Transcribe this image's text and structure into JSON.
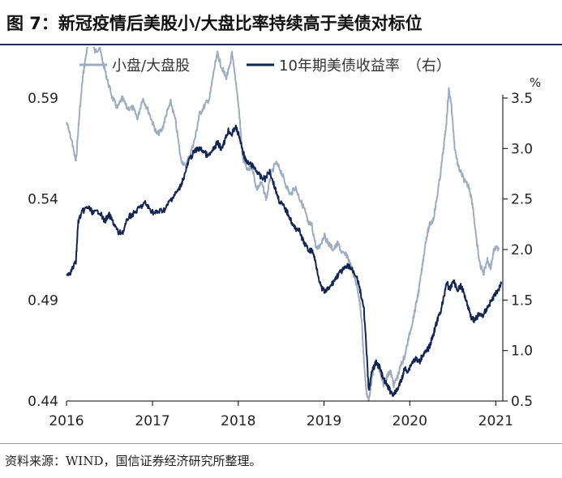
{
  "title": "图 7：新冠疫情后美股小/大盘比率持续高于美债对标位",
  "source": "资料来源：WIND，国信证券经济研究所整理。",
  "colors": {
    "small_large": "#9eacbf",
    "treasury": "#14254f",
    "axis": "#000000"
  },
  "chart_data": {
    "type": "line",
    "xlabel": "",
    "x_ticks": [
      "2016",
      "2017",
      "2018",
      "2019",
      "2020",
      "2021"
    ],
    "xlim": [
      "2016-01-01",
      "2021-01-31"
    ],
    "y_left": {
      "ticks": [
        "0.44",
        "0.49",
        "0.54",
        "0.59"
      ],
      "lim": [
        0.44,
        0.59
      ]
    },
    "y_right": {
      "unit": "%",
      "ticks": [
        "0.5",
        "1.0",
        "1.5",
        "2.0",
        "2.5",
        "3.0",
        "3.5"
      ],
      "lim": [
        0.5,
        3.5
      ]
    },
    "legend_position": "top",
    "series": [
      {
        "name": "小盘/大盘股",
        "axis": "left",
        "points": [
          [
            "2016-01-01",
            0.578
          ],
          [
            "2016-01-25",
            0.568
          ],
          [
            "2016-02-10",
            0.558
          ],
          [
            "2016-02-25",
            0.582
          ],
          [
            "2016-03-10",
            0.6
          ],
          [
            "2016-03-25",
            0.612
          ],
          [
            "2016-04-10",
            0.62
          ],
          [
            "2016-05-01",
            0.613
          ],
          [
            "2016-05-20",
            0.615
          ],
          [
            "2016-06-10",
            0.605
          ],
          [
            "2016-06-25",
            0.598
          ],
          [
            "2016-07-15",
            0.59
          ],
          [
            "2016-08-05",
            0.585
          ],
          [
            "2016-08-25",
            0.59
          ],
          [
            "2016-09-15",
            0.585
          ],
          [
            "2016-10-10",
            0.585
          ],
          [
            "2016-10-30",
            0.58
          ],
          [
            "2016-11-20",
            0.59
          ],
          [
            "2016-12-10",
            0.585
          ],
          [
            "2017-01-01",
            0.578
          ],
          [
            "2017-01-20",
            0.572
          ],
          [
            "2017-02-10",
            0.574
          ],
          [
            "2017-03-01",
            0.582
          ],
          [
            "2017-03-20",
            0.588
          ],
          [
            "2017-04-10",
            0.578
          ],
          [
            "2017-05-01",
            0.56
          ],
          [
            "2017-05-20",
            0.556
          ],
          [
            "2017-06-10",
            0.562
          ],
          [
            "2017-07-01",
            0.57
          ],
          [
            "2017-07-20",
            0.582
          ],
          [
            "2017-08-10",
            0.586
          ],
          [
            "2017-09-01",
            0.59
          ],
          [
            "2017-09-20",
            0.604
          ],
          [
            "2017-10-05",
            0.612
          ],
          [
            "2017-10-20",
            0.606
          ],
          [
            "2017-11-10",
            0.6
          ],
          [
            "2017-11-25",
            0.605
          ],
          [
            "2017-12-05",
            0.612
          ],
          [
            "2017-12-20",
            0.6
          ],
          [
            "2018-01-05",
            0.583
          ],
          [
            "2018-01-20",
            0.56
          ],
          [
            "2018-02-10",
            0.554
          ],
          [
            "2018-03-01",
            0.556
          ],
          [
            "2018-03-20",
            0.545
          ],
          [
            "2018-04-10",
            0.548
          ],
          [
            "2018-05-01",
            0.54
          ],
          [
            "2018-05-20",
            0.552
          ],
          [
            "2018-06-10",
            0.558
          ],
          [
            "2018-07-01",
            0.554
          ],
          [
            "2018-07-20",
            0.548
          ],
          [
            "2018-08-10",
            0.542
          ],
          [
            "2018-09-01",
            0.546
          ],
          [
            "2018-09-20",
            0.54
          ],
          [
            "2018-10-10",
            0.535
          ],
          [
            "2018-10-25",
            0.528
          ],
          [
            "2018-11-10",
            0.527
          ],
          [
            "2018-11-30",
            0.515
          ],
          [
            "2018-12-15",
            0.517
          ],
          [
            "2019-01-01",
            0.522
          ],
          [
            "2019-01-20",
            0.518
          ],
          [
            "2019-02-10",
            0.515
          ],
          [
            "2019-03-01",
            0.518
          ],
          [
            "2019-03-20",
            0.513
          ],
          [
            "2019-04-10",
            0.512
          ],
          [
            "2019-04-30",
            0.505
          ],
          [
            "2019-05-15",
            0.5
          ],
          [
            "2019-05-30",
            0.492
          ],
          [
            "2019-06-10",
            0.48
          ],
          [
            "2019-06-20",
            0.46
          ],
          [
            "2019-06-30",
            0.445
          ],
          [
            "2019-07-10",
            0.44
          ],
          [
            "2019-07-25",
            0.452
          ],
          [
            "2019-08-10",
            0.46
          ],
          [
            "2019-08-25",
            0.455
          ],
          [
            "2019-09-10",
            0.448
          ],
          [
            "2019-09-25",
            0.452
          ],
          [
            "2019-10-10",
            0.455
          ],
          [
            "2019-10-25",
            0.448
          ],
          [
            "2019-11-10",
            0.452
          ],
          [
            "2019-11-25",
            0.458
          ],
          [
            "2019-12-10",
            0.462
          ],
          [
            "2019-12-25",
            0.47
          ],
          [
            "2020-01-10",
            0.478
          ],
          [
            "2020-01-25",
            0.486
          ],
          [
            "2020-02-10",
            0.496
          ],
          [
            "2020-02-25",
            0.508
          ],
          [
            "2020-03-10",
            0.52
          ],
          [
            "2020-03-25",
            0.527
          ],
          [
            "2020-04-10",
            0.53
          ],
          [
            "2020-04-25",
            0.54
          ],
          [
            "2020-05-10",
            0.552
          ],
          [
            "2020-05-25",
            0.566
          ],
          [
            "2020-06-05",
            0.578
          ],
          [
            "2020-06-15",
            0.594
          ],
          [
            "2020-06-25",
            0.588
          ],
          [
            "2020-07-10",
            0.566
          ],
          [
            "2020-07-25",
            0.556
          ],
          [
            "2020-08-10",
            0.552
          ],
          [
            "2020-08-25",
            0.548
          ],
          [
            "2020-09-10",
            0.546
          ],
          [
            "2020-09-25",
            0.537
          ],
          [
            "2020-10-10",
            0.52
          ],
          [
            "2020-10-25",
            0.508
          ],
          [
            "2020-11-10",
            0.503
          ],
          [
            "2020-11-25",
            0.51
          ],
          [
            "2020-12-10",
            0.506
          ],
          [
            "2020-12-25",
            0.515
          ],
          [
            "2021-01-15",
            0.516
          ]
        ]
      },
      {
        "name": "10年期美债收益率　（右）",
        "axis": "right",
        "points": [
          [
            "2016-01-01",
            1.76
          ],
          [
            "2016-01-20",
            1.78
          ],
          [
            "2016-02-10",
            1.88
          ],
          [
            "2016-02-20",
            2.28
          ],
          [
            "2016-03-10",
            2.38
          ],
          [
            "2016-04-01",
            2.42
          ],
          [
            "2016-04-25",
            2.36
          ],
          [
            "2016-05-20",
            2.38
          ],
          [
            "2016-06-10",
            2.28
          ],
          [
            "2016-07-01",
            2.34
          ],
          [
            "2016-07-20",
            2.26
          ],
          [
            "2016-08-10",
            2.16
          ],
          [
            "2016-08-30",
            2.18
          ],
          [
            "2016-09-20",
            2.32
          ],
          [
            "2016-10-15",
            2.36
          ],
          [
            "2016-11-10",
            2.42
          ],
          [
            "2016-12-01",
            2.46
          ],
          [
            "2016-12-20",
            2.4
          ],
          [
            "2017-01-10",
            2.36
          ],
          [
            "2017-02-01",
            2.38
          ],
          [
            "2017-02-25",
            2.4
          ],
          [
            "2017-03-15",
            2.48
          ],
          [
            "2017-04-05",
            2.54
          ],
          [
            "2017-04-25",
            2.6
          ],
          [
            "2017-05-15",
            2.72
          ],
          [
            "2017-06-05",
            2.88
          ],
          [
            "2017-06-25",
            2.96
          ],
          [
            "2017-07-15",
            3.0
          ],
          [
            "2017-08-05",
            2.98
          ],
          [
            "2017-08-25",
            2.92
          ],
          [
            "2017-09-15",
            2.98
          ],
          [
            "2017-10-05",
            3.06
          ],
          [
            "2017-10-20",
            3.0
          ],
          [
            "2017-11-05",
            3.08
          ],
          [
            "2017-11-20",
            3.18
          ],
          [
            "2017-12-05",
            3.14
          ],
          [
            "2017-12-20",
            3.22
          ],
          [
            "2018-01-05",
            3.12
          ],
          [
            "2018-01-20",
            2.98
          ],
          [
            "2018-02-05",
            2.86
          ],
          [
            "2018-02-25",
            2.84
          ],
          [
            "2018-03-15",
            2.8
          ],
          [
            "2018-04-05",
            2.72
          ],
          [
            "2018-04-25",
            2.7
          ],
          [
            "2018-05-15",
            2.78
          ],
          [
            "2018-06-05",
            2.62
          ],
          [
            "2018-06-25",
            2.48
          ],
          [
            "2018-07-15",
            2.42
          ],
          [
            "2018-08-05",
            2.34
          ],
          [
            "2018-08-25",
            2.22
          ],
          [
            "2018-09-15",
            2.2
          ],
          [
            "2018-10-05",
            2.08
          ],
          [
            "2018-10-25",
            2.0
          ],
          [
            "2018-11-15",
            1.98
          ],
          [
            "2018-12-01",
            1.82
          ],
          [
            "2018-12-20",
            1.62
          ],
          [
            "2019-01-05",
            1.58
          ],
          [
            "2019-01-25",
            1.62
          ],
          [
            "2019-02-15",
            1.7
          ],
          [
            "2019-03-05",
            1.76
          ],
          [
            "2019-03-25",
            1.8
          ],
          [
            "2019-04-15",
            1.84
          ],
          [
            "2019-05-01",
            1.8
          ],
          [
            "2019-05-20",
            1.74
          ],
          [
            "2019-06-05",
            1.58
          ],
          [
            "2019-06-20",
            1.4
          ],
          [
            "2019-07-01",
            1.0
          ],
          [
            "2019-07-10",
            0.6
          ],
          [
            "2019-07-25",
            0.8
          ],
          [
            "2019-08-10",
            0.88
          ],
          [
            "2019-08-25",
            0.84
          ],
          [
            "2019-09-10",
            0.72
          ],
          [
            "2019-09-25",
            0.66
          ],
          [
            "2019-10-10",
            0.6
          ],
          [
            "2019-10-25",
            0.56
          ],
          [
            "2019-11-10",
            0.62
          ],
          [
            "2019-11-25",
            0.7
          ],
          [
            "2019-12-10",
            0.82
          ],
          [
            "2019-12-25",
            0.8
          ],
          [
            "2020-01-10",
            0.88
          ],
          [
            "2020-01-25",
            0.92
          ],
          [
            "2020-02-10",
            0.88
          ],
          [
            "2020-02-25",
            0.96
          ],
          [
            "2020-03-10",
            0.98
          ],
          [
            "2020-03-25",
            1.04
          ],
          [
            "2020-04-10",
            1.16
          ],
          [
            "2020-04-25",
            1.28
          ],
          [
            "2020-05-10",
            1.38
          ],
          [
            "2020-05-25",
            1.52
          ],
          [
            "2020-06-05",
            1.68
          ],
          [
            "2020-06-20",
            1.6
          ],
          [
            "2020-07-05",
            1.7
          ],
          [
            "2020-07-20",
            1.6
          ],
          [
            "2020-08-05",
            1.64
          ],
          [
            "2020-08-20",
            1.56
          ],
          [
            "2020-09-05",
            1.44
          ],
          [
            "2020-09-20",
            1.32
          ],
          [
            "2020-10-05",
            1.3
          ],
          [
            "2020-10-20",
            1.36
          ],
          [
            "2020-11-05",
            1.34
          ],
          [
            "2020-11-20",
            1.4
          ],
          [
            "2020-12-05",
            1.46
          ],
          [
            "2020-12-20",
            1.52
          ],
          [
            "2021-01-05",
            1.58
          ],
          [
            "2021-01-25",
            1.66
          ]
        ]
      }
    ]
  }
}
